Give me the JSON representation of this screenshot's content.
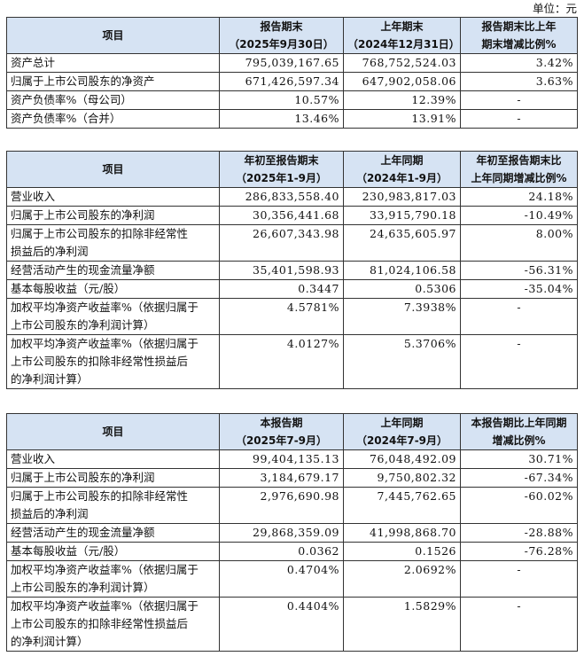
{
  "unit_note": "单位：元",
  "table1": {
    "header": {
      "item": "项目",
      "col2": [
        "报告期末",
        "（2025年9月30日）"
      ],
      "col3": [
        "上年期末",
        "（2024年12月31日）"
      ],
      "col4": [
        "报告期末比上年",
        "期末增减比例%"
      ]
    },
    "rows": [
      {
        "label": "资产总计",
        "v1": "795,039,167.65",
        "v2": "768,752,524.03",
        "v3": "3.42%"
      },
      {
        "label": "归属于上市公司股东的净资产",
        "v1": "671,426,597.34",
        "v2": "647,902,058.06",
        "v3": "3.63%"
      },
      {
        "label": "资产负债率%（母公司）",
        "v1": "10.57%",
        "v2": "12.39%",
        "v3": "-"
      },
      {
        "label": "资产负债率%（合并）",
        "v1": "13.46%",
        "v2": "13.91%",
        "v3": "-"
      }
    ]
  },
  "table2": {
    "header": {
      "item": "项目",
      "col2": [
        "年初至报告期末",
        "（2025年1-9月）"
      ],
      "col3": [
        "上年同期",
        "（2024年1-9月）"
      ],
      "col4": [
        "年初至报告期末比",
        "上年同期增减比例%"
      ]
    },
    "rows": [
      {
        "label": [
          "营业收入"
        ],
        "v1": "286,833,558.40",
        "v2": "230,983,817.03",
        "v3": "24.18%"
      },
      {
        "label": [
          "归属于上市公司股东的净利润"
        ],
        "v1": "30,356,441.68",
        "v2": "33,915,790.18",
        "v3": "-10.49%"
      },
      {
        "label": [
          "归属于上市公司股东的扣除非经常性",
          "损益后的净利润"
        ],
        "v1": "26,607,343.98",
        "v2": "24,635,605.97",
        "v3": "8.00%"
      },
      {
        "label": [
          "经营活动产生的现金流量净额"
        ],
        "v1": "35,401,598.93",
        "v2": "81,024,106.58",
        "v3": "-56.31%"
      },
      {
        "label": [
          "基本每股收益（元/股）"
        ],
        "v1": "0.3447",
        "v2": "0.5306",
        "v3": "-35.04%"
      },
      {
        "label": [
          "加权平均净资产收益率%（依据归属于",
          "上市公司股东的净利润计算）"
        ],
        "v1": "4.5781%",
        "v2": "7.3938%",
        "v3": "-"
      },
      {
        "label": [
          "加权平均净资产收益率%（依据归属于",
          "上市公司股东的扣除非经常性损益后",
          "的净利润计算）"
        ],
        "v1": "4.0127%",
        "v2": "5.3706%",
        "v3": "-"
      }
    ]
  },
  "table3": {
    "header": {
      "item": "项目",
      "col2": [
        "本报告期",
        "（2025年7-9月）"
      ],
      "col3": [
        "上年同期",
        "（2024年7-9月）"
      ],
      "col4": [
        "本报告期比上年同期",
        "增减比例%"
      ]
    },
    "rows": [
      {
        "label": [
          "营业收入"
        ],
        "v1": "99,404,135.13",
        "v2": "76,048,492.09",
        "v3": "30.71%"
      },
      {
        "label": [
          "归属于上市公司股东的净利润"
        ],
        "v1": "3,184,679.17",
        "v2": "9,750,802.32",
        "v3": "-67.34%"
      },
      {
        "label": [
          "归属于上市公司股东的扣除非经常性",
          "损益后的净利润"
        ],
        "v1": "2,976,690.98",
        "v2": "7,445,762.65",
        "v3": "-60.02%"
      },
      {
        "label": [
          "经营活动产生的现金流量净额"
        ],
        "v1": "29,868,359.09",
        "v2": "41,998,868.70",
        "v3": "-28.88%"
      },
      {
        "label": [
          "基本每股收益（元/股）"
        ],
        "v1": "0.0362",
        "v2": "0.1526",
        "v3": "-76.28%"
      },
      {
        "label": [
          "加权平均净资产收益率%（依据归属于",
          "上市公司股东的净利润计算）"
        ],
        "v1": "0.4704%",
        "v2": "2.0692%",
        "v3": "-"
      },
      {
        "label": [
          "加权平均净资产收益率%（依据归属于",
          "上市公司股东的扣除非经常性损益后",
          "的净利润计算）"
        ],
        "v1": "0.4404%",
        "v2": "1.5829%",
        "v3": "-"
      }
    ]
  }
}
